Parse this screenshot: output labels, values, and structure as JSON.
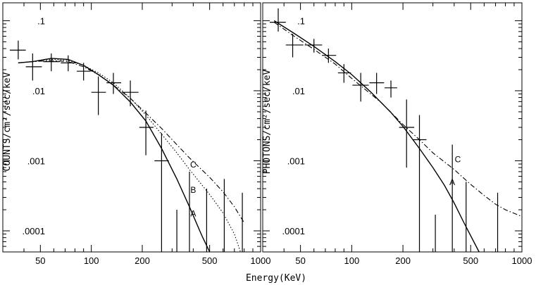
{
  "xlabel": "Energy(KeV)",
  "chart_data": [
    {
      "type": "scatter",
      "ylabel": "COUNTS/cm²/sec/keV",
      "xscale": "log",
      "yscale": "log",
      "xlim": [
        30,
        1000
      ],
      "ylim": [
        5e-05,
        0.18
      ],
      "xticks": [
        50,
        100,
        200,
        500,
        1000
      ],
      "xtick_labels": [
        "50",
        "100",
        "200",
        "500",
        "1000"
      ],
      "yticks": [
        0.0001,
        0.001,
        0.01,
        0.1
      ],
      "ytick_labels": [
        ".0001",
        ".001",
        ".01",
        ".1"
      ],
      "data_points": [
        {
          "x": 37,
          "y": 0.038,
          "xerr": [
            33,
            41
          ],
          "yerr": [
            0.028,
            0.052
          ]
        },
        {
          "x": 45,
          "y": 0.022,
          "xerr": [
            41,
            51
          ],
          "yerr": [
            0.014,
            0.034
          ]
        },
        {
          "x": 58,
          "y": 0.026,
          "xerr": [
            52,
            65
          ],
          "yerr": [
            0.019,
            0.034
          ]
        },
        {
          "x": 73,
          "y": 0.025,
          "xerr": [
            66,
            81
          ],
          "yerr": [
            0.019,
            0.032
          ]
        },
        {
          "x": 90,
          "y": 0.019,
          "xerr": [
            82,
            99
          ],
          "yerr": [
            0.014,
            0.025
          ]
        },
        {
          "x": 110,
          "y": 0.0095,
          "xerr": [
            100,
            122
          ],
          "yerr": [
            0.0045,
            0.016
          ]
        },
        {
          "x": 135,
          "y": 0.013,
          "xerr": [
            123,
            150
          ],
          "yerr": [
            0.009,
            0.018
          ]
        },
        {
          "x": 170,
          "y": 0.0095,
          "xerr": [
            152,
            190
          ],
          "yerr": [
            0.006,
            0.014
          ]
        },
        {
          "x": 210,
          "y": 0.003,
          "xerr": [
            192,
            233
          ],
          "yerr": [
            0.0012,
            0.0052
          ]
        },
        {
          "x": 260,
          "y": 0.001,
          "xerr": [
            236,
            287
          ],
          "yerr": [
            5e-05,
            0.0025
          ]
        }
      ],
      "upper_limits": [
        {
          "x": 320,
          "y": 0.0002
        },
        {
          "x": 380,
          "y": 0.0007
        },
        {
          "x": 480,
          "y": 0.0004
        },
        {
          "x": 610,
          "y": 0.00055
        },
        {
          "x": 780,
          "y": 0.00035
        }
      ],
      "series": [
        {
          "name": "A",
          "style": "solid",
          "x": [
            37,
            45,
            58,
            73,
            90,
            110,
            135,
            170,
            210,
            260,
            320,
            380,
            450,
            500
          ],
          "y": [
            0.025,
            0.026,
            0.029,
            0.028,
            0.023,
            0.017,
            0.012,
            0.0069,
            0.0037,
            0.0015,
            0.00055,
            0.00022,
            8.5e-05,
            5e-05
          ]
        },
        {
          "name": "B",
          "style": "dotted",
          "x": [
            37,
            45,
            58,
            73,
            90,
            110,
            135,
            170,
            210,
            260,
            320,
            380,
            500,
            600,
            700,
            760
          ],
          "y": [
            0.025,
            0.026,
            0.028,
            0.027,
            0.023,
            0.018,
            0.013,
            0.0078,
            0.0045,
            0.0024,
            0.0013,
            0.00075,
            0.00033,
            0.00018,
            9e-05,
            5e-05
          ]
        },
        {
          "name": "C",
          "style": "dashdot",
          "x": [
            37,
            45,
            58,
            73,
            90,
            110,
            135,
            170,
            210,
            260,
            320,
            380,
            500,
            600,
            700,
            800
          ],
          "y": [
            0.025,
            0.026,
            0.027,
            0.026,
            0.022,
            0.017,
            0.012,
            0.0078,
            0.0048,
            0.0029,
            0.0017,
            0.0011,
            0.00058,
            0.00036,
            0.00022,
            0.00013
          ]
        }
      ],
      "curve_labels": [
        {
          "text": "C",
          "x": 400,
          "y": 0.0008
        },
        {
          "text": "B",
          "x": 400,
          "y": 0.00035
        },
        {
          "text": "A",
          "x": 400,
          "y": 0.00016
        }
      ]
    },
    {
      "type": "scatter",
      "ylabel": "PHOTONS/cm²/sec/keV",
      "xscale": "log",
      "yscale": "log",
      "xlim": [
        30,
        1000
      ],
      "ylim": [
        5e-05,
        0.18
      ],
      "xticks": [
        50,
        100,
        200,
        500,
        1000
      ],
      "xtick_labels": [
        "50",
        "100",
        "200",
        "500",
        "1000"
      ],
      "yticks": [
        0.0001,
        0.001,
        0.01,
        0.1
      ],
      "ytick_labels": [
        ".0001",
        ".001",
        ".01",
        ".1"
      ],
      "data_points": [
        {
          "x": 37,
          "y": 0.095,
          "xerr": [
            33,
            41
          ],
          "yerr": [
            0.07,
            0.15
          ]
        },
        {
          "x": 45,
          "y": 0.045,
          "xerr": [
            41,
            52
          ],
          "yerr": [
            0.03,
            0.065
          ]
        },
        {
          "x": 60,
          "y": 0.045,
          "xerr": [
            53,
            67
          ],
          "yerr": [
            0.035,
            0.055
          ]
        },
        {
          "x": 73,
          "y": 0.032,
          "xerr": [
            67,
            81
          ],
          "yerr": [
            0.025,
            0.04
          ]
        },
        {
          "x": 90,
          "y": 0.018,
          "xerr": [
            83,
            99
          ],
          "yerr": [
            0.013,
            0.024
          ]
        },
        {
          "x": 113,
          "y": 0.012,
          "xerr": [
            101,
            126
          ],
          "yerr": [
            0.007,
            0.018
          ]
        },
        {
          "x": 140,
          "y": 0.013,
          "xerr": [
            127,
            155
          ],
          "yerr": [
            0.009,
            0.018
          ]
        },
        {
          "x": 170,
          "y": 0.011,
          "xerr": [
            156,
            185
          ],
          "yerr": [
            0.008,
            0.014
          ]
        },
        {
          "x": 210,
          "y": 0.003,
          "xerr": [
            190,
            233
          ],
          "yerr": [
            0.0008,
            0.0075
          ]
        },
        {
          "x": 250,
          "y": 0.002,
          "xerr": [
            230,
            275
          ],
          "yerr": [
            5e-05,
            0.0045
          ]
        }
      ],
      "upper_limits": [
        {
          "x": 310,
          "y": 0.00017
        },
        {
          "x": 390,
          "y": 0.0017
        },
        {
          "x": 470,
          "y": 0.0005
        },
        {
          "x": 720,
          "y": 0.00035
        }
      ],
      "series": [
        {
          "name": "A",
          "style": "solid",
          "x": [
            35,
            45,
            60,
            80,
            100,
            130,
            170,
            200,
            250,
            300,
            350,
            400,
            450,
            500,
            560
          ],
          "y": [
            0.1,
            0.068,
            0.043,
            0.026,
            0.017,
            0.0095,
            0.0049,
            0.0031,
            0.0015,
            0.0008,
            0.00045,
            0.00025,
            0.00014,
            8.5e-05,
            5e-05
          ]
        },
        {
          "name": "C",
          "style": "dashdot",
          "x": [
            35,
            45,
            60,
            80,
            100,
            150,
            200,
            250,
            300,
            400,
            500,
            600,
            700,
            800,
            1000
          ],
          "y": [
            0.095,
            0.062,
            0.039,
            0.024,
            0.015,
            0.0067,
            0.0033,
            0.002,
            0.0013,
            0.00075,
            0.00046,
            0.00032,
            0.00024,
            0.0002,
            0.00016
          ]
        }
      ],
      "curve_labels": [
        {
          "text": "C",
          "x": 420,
          "y": 0.00095
        },
        {
          "text": "A",
          "x": 390,
          "y": 0.00045
        }
      ]
    }
  ]
}
